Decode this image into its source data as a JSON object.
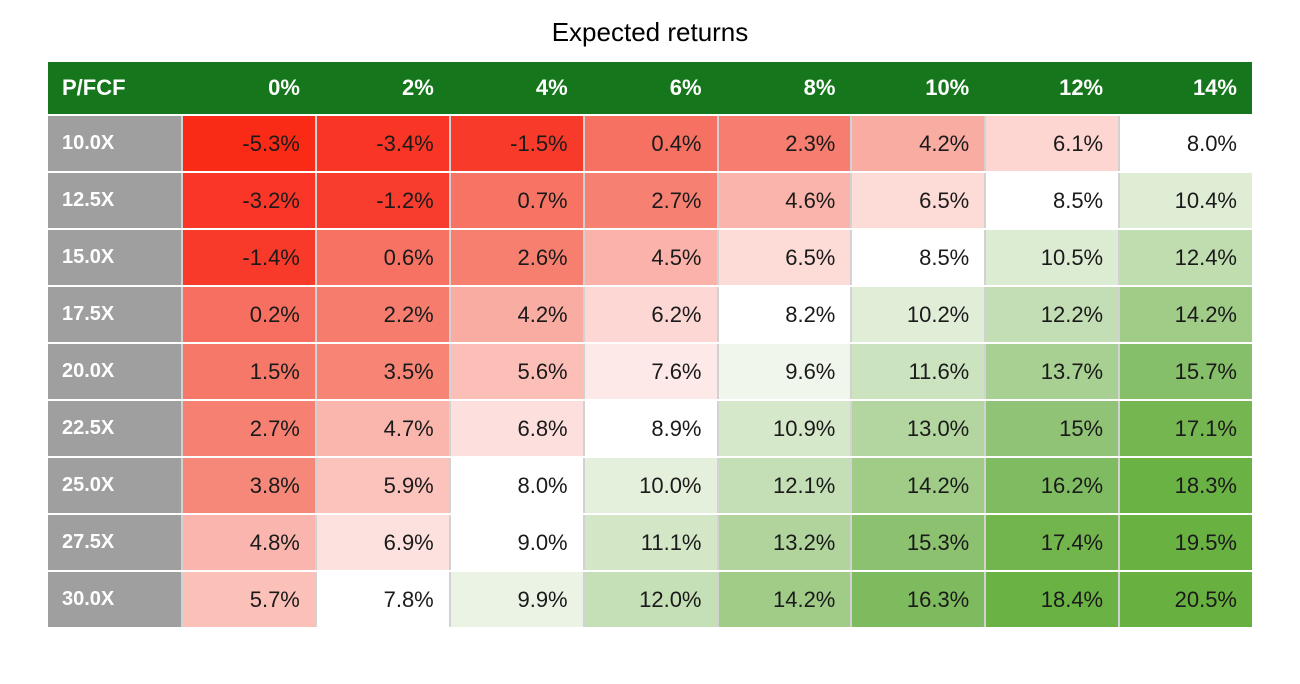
{
  "colors": {
    "page_bg": "#ffffff",
    "header_bg": "#15761b",
    "header_text": "#ffffff",
    "row_label_bg": "#9f9f9f",
    "row_label_text": "#ffffff",
    "cell_text": "#1a1a1a",
    "column_divider": "#d2d2d2",
    "row_divider": "#ffffff"
  },
  "chart_data": {
    "type": "heatmap",
    "title": "Expected returns",
    "row_header": "P/FCF",
    "columns": [
      "0%",
      "2%",
      "4%",
      "6%",
      "8%",
      "10%",
      "12%",
      "14%"
    ],
    "rows": [
      "10.0X",
      "12.5X",
      "15.0X",
      "17.5X",
      "20.0X",
      "22.5X",
      "25.0X",
      "27.5X",
      "30.0X"
    ],
    "values": [
      [
        -5.3,
        -3.4,
        -1.5,
        0.4,
        2.3,
        4.2,
        6.1,
        8.0
      ],
      [
        -3.2,
        -1.2,
        0.7,
        2.7,
        4.6,
        6.5,
        8.5,
        10.4
      ],
      [
        -1.4,
        0.6,
        2.6,
        4.5,
        6.5,
        8.5,
        10.5,
        12.4
      ],
      [
        0.2,
        2.2,
        4.2,
        6.2,
        8.2,
        10.2,
        12.2,
        14.2
      ],
      [
        1.5,
        3.5,
        5.6,
        7.6,
        9.6,
        11.6,
        13.7,
        15.7
      ],
      [
        2.7,
        4.7,
        6.8,
        8.9,
        10.9,
        13.0,
        15.0,
        17.1
      ],
      [
        3.8,
        5.9,
        8.0,
        10.0,
        12.1,
        14.2,
        16.2,
        18.3
      ],
      [
        4.8,
        6.9,
        9.0,
        11.1,
        13.2,
        15.3,
        17.4,
        19.5
      ],
      [
        5.7,
        7.8,
        9.9,
        12.0,
        14.2,
        16.3,
        18.4,
        20.5
      ]
    ],
    "cell_labels": [
      [
        "-5.3%",
        "-3.4%",
        "-1.5%",
        "0.4%",
        "2.3%",
        "4.2%",
        "6.1%",
        "8.0%"
      ],
      [
        "-3.2%",
        "-1.2%",
        "0.7%",
        "2.7%",
        "4.6%",
        "6.5%",
        "8.5%",
        "10.4%"
      ],
      [
        "-1.4%",
        "0.6%",
        "2.6%",
        "4.5%",
        "6.5%",
        "8.5%",
        "10.5%",
        "12.4%"
      ],
      [
        "0.2%",
        "2.2%",
        "4.2%",
        "6.2%",
        "8.2%",
        "10.2%",
        "12.2%",
        "14.2%"
      ],
      [
        "1.5%",
        "3.5%",
        "5.6%",
        "7.6%",
        "9.6%",
        "11.6%",
        "13.7%",
        "15.7%"
      ],
      [
        "2.7%",
        "4.7%",
        "6.8%",
        "8.9%",
        "10.9%",
        "13.0%",
        "15%",
        "17.1%"
      ],
      [
        "3.8%",
        "5.9%",
        "8.0%",
        "10.0%",
        "12.1%",
        "14.2%",
        "16.2%",
        "18.3%"
      ],
      [
        "4.8%",
        "6.9%",
        "9.0%",
        "11.1%",
        "13.2%",
        "15.3%",
        "17.4%",
        "19.5%"
      ],
      [
        "5.7%",
        "7.8%",
        "9.9%",
        "12.0%",
        "14.2%",
        "16.3%",
        "18.4%",
        "20.5%"
      ]
    ],
    "cell_colors": [
      [
        "#fa2b16",
        "#f93526",
        "#f83a2b",
        "#f77162",
        "#f67d6f",
        "#f9aca2",
        "#fdd6d2",
        "#ffffff"
      ],
      [
        "#f93627",
        "#f83c2d",
        "#f77364",
        "#f68071",
        "#fab4ab",
        "#fddbd7",
        "#ffffff",
        "#dfedd5"
      ],
      [
        "#f83a2b",
        "#f77263",
        "#f67f70",
        "#fab2aa",
        "#fddbd7",
        "#ffffff",
        "#dcecd2",
        "#c0ddb0"
      ],
      [
        "#f76f60",
        "#f67d6e",
        "#f9aca2",
        "#fdd7d3",
        "#ffffff",
        "#e0eed7",
        "#c3deb4",
        "#a0cc88"
      ],
      [
        "#f67869",
        "#f68576",
        "#fbbfb7",
        "#fdeae8",
        "#f0f6eb",
        "#cce3bf",
        "#a8d092",
        "#86bf69"
      ],
      [
        "#f68071",
        "#fab5ad",
        "#fde0dd",
        "#ffffff",
        "#d6e8ca",
        "#b3d59f",
        "#90c375",
        "#75b651"
      ],
      [
        "#f6887a",
        "#fbc3bc",
        "#ffffff",
        "#e4f0dc",
        "#c4dfb5",
        "#a0cc88",
        "#7fbc61",
        "#6bb244"
      ],
      [
        "#fab6ae",
        "#fde1de",
        "#ffffff",
        "#d3e7c7",
        "#b0d49c",
        "#8cc170",
        "#72b54d",
        "#69b141"
      ],
      [
        "#fbc0b8",
        "#ffffff",
        "#eaf3e4",
        "#c5dfb6",
        "#a0cc88",
        "#7ebb5f",
        "#6ab243",
        "#68b03f"
      ]
    ],
    "color_scale": {
      "low": "#fa2b16",
      "mid": "#ffffff",
      "high": "#68b03f",
      "mid_value_approx": 8.0
    },
    "legend": "none",
    "grid": "on"
  }
}
